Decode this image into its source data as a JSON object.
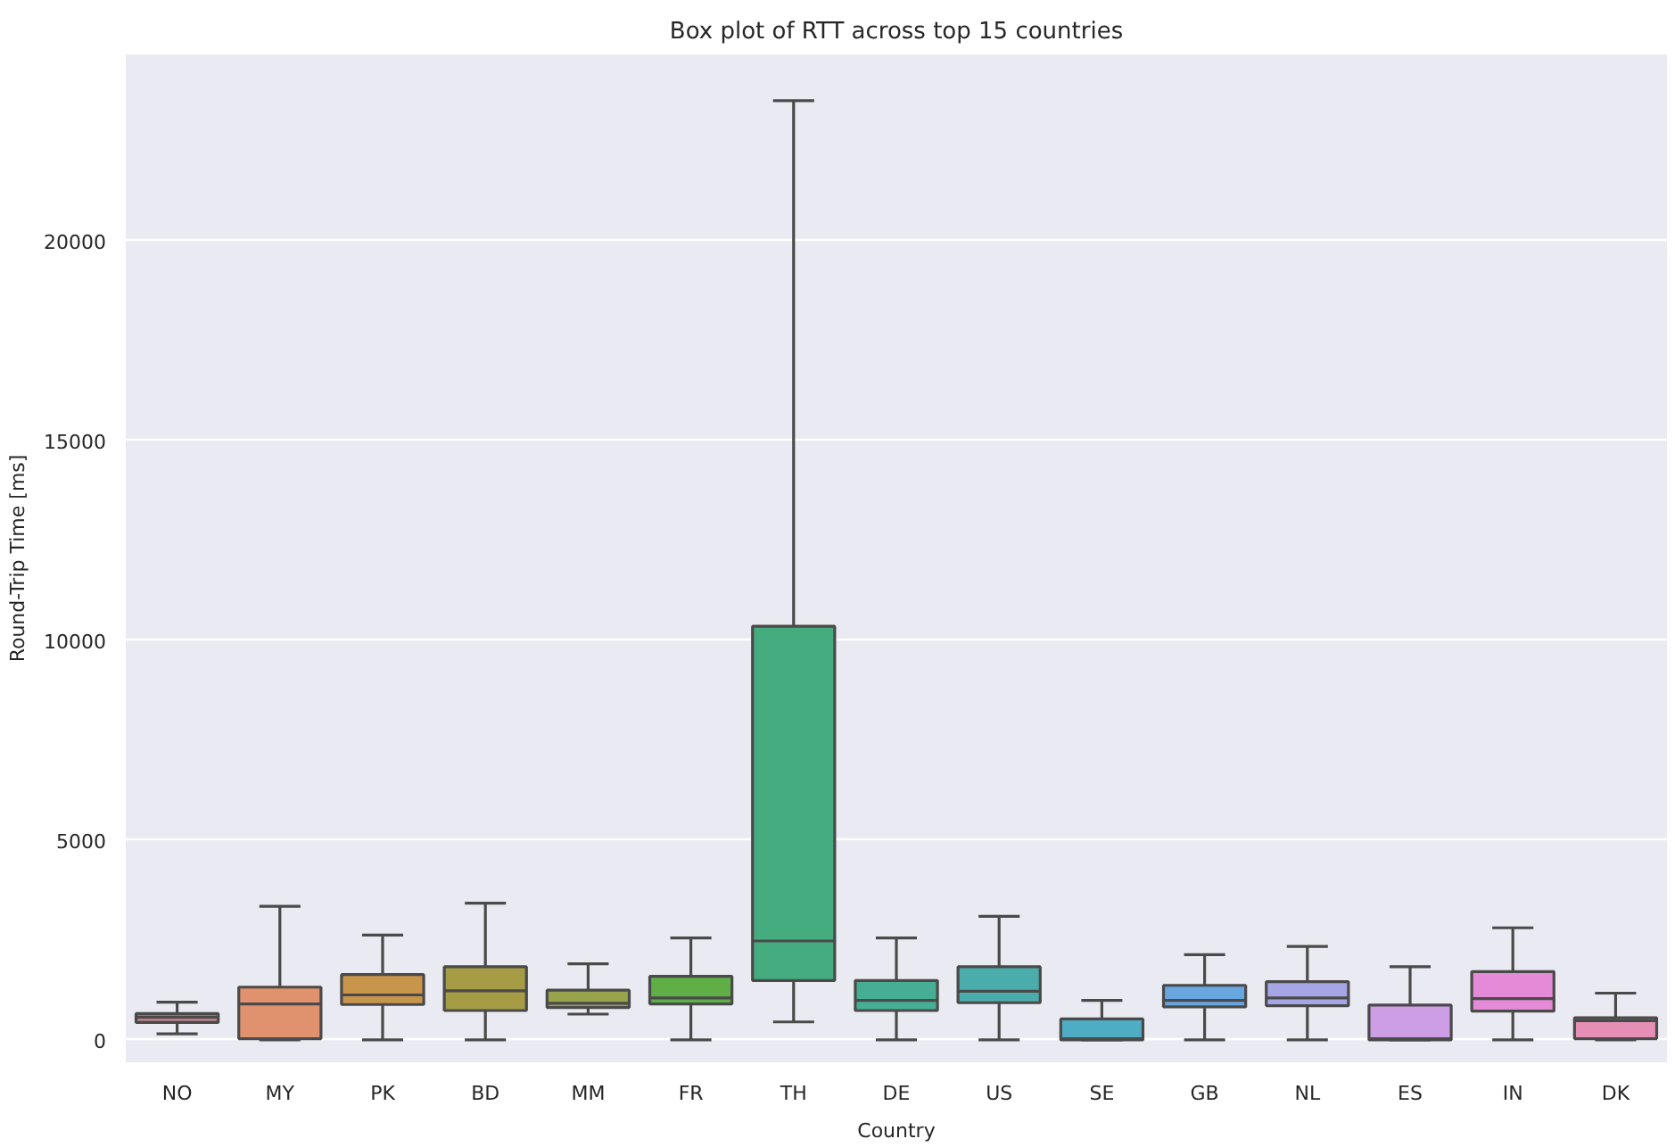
{
  "chart_data": {
    "type": "box",
    "title": "Box plot of RTT across top 15 countries",
    "xlabel": "Country",
    "ylabel": "Round-Trip Time [ms]",
    "categories": [
      "NO",
      "MY",
      "PK",
      "BD",
      "MM",
      "FR",
      "TH",
      "DE",
      "US",
      "SE",
      "GB",
      "NL",
      "ES",
      "IN",
      "DK"
    ],
    "colors": [
      "#b98088",
      "#e0916e",
      "#c8954a",
      "#a69c45",
      "#98a34b",
      "#5fae46",
      "#45ac80",
      "#46ae95",
      "#4aacab",
      "#4eacc4",
      "#68a6e0",
      "#a6a6e6",
      "#cd9ee6",
      "#e48ad6",
      "#e68eb5"
    ],
    "boxes": [
      {
        "low": 150,
        "q1": 435,
        "median": 570,
        "q3": 660,
        "high": 945
      },
      {
        "low": 0,
        "q1": 30,
        "median": 900,
        "q3": 1320,
        "high": 3345
      },
      {
        "low": 0,
        "q1": 885,
        "median": 1125,
        "q3": 1635,
        "high": 2625
      },
      {
        "low": 0,
        "q1": 735,
        "median": 1230,
        "q3": 1830,
        "high": 3420
      },
      {
        "low": 645,
        "q1": 810,
        "median": 915,
        "q3": 1245,
        "high": 1905
      },
      {
        "low": 0,
        "q1": 900,
        "median": 1050,
        "q3": 1590,
        "high": 2550
      },
      {
        "low": 450,
        "q1": 1485,
        "median": 2475,
        "q3": 10350,
        "high": 23500
      },
      {
        "low": 0,
        "q1": 735,
        "median": 990,
        "q3": 1485,
        "high": 2550
      },
      {
        "low": 0,
        "q1": 930,
        "median": 1215,
        "q3": 1830,
        "high": 3090
      },
      {
        "low": 0,
        "q1": 0,
        "median": 30,
        "q3": 525,
        "high": 990
      },
      {
        "low": 0,
        "q1": 825,
        "median": 990,
        "q3": 1365,
        "high": 2130
      },
      {
        "low": 0,
        "q1": 855,
        "median": 1050,
        "q3": 1455,
        "high": 2340
      },
      {
        "low": 0,
        "q1": 0,
        "median": 30,
        "q3": 870,
        "high": 1830
      },
      {
        "low": 0,
        "q1": 720,
        "median": 1035,
        "q3": 1710,
        "high": 2805
      },
      {
        "low": 0,
        "q1": 30,
        "median": 480,
        "q3": 555,
        "high": 1170
      }
    ],
    "ylim": [
      -560,
      24660
    ],
    "yticks": [
      0,
      5000,
      10000,
      15000,
      20000
    ],
    "grid": "y"
  }
}
